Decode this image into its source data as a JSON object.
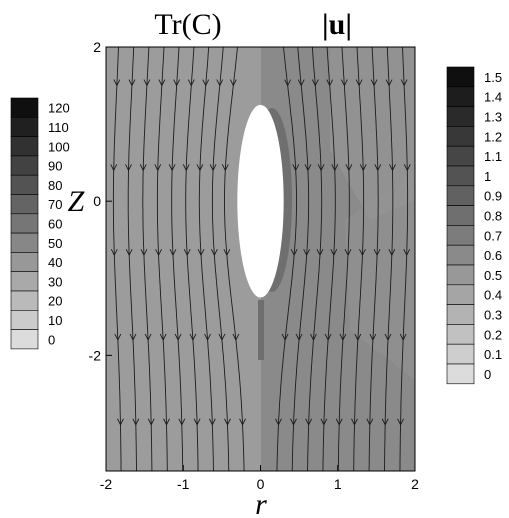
{
  "title_left": "Tr(C)",
  "title_right": "|u|",
  "axes": {
    "xlabel": "r",
    "ylabel": "Z",
    "xlim": [
      -2,
      2
    ],
    "ylim": [
      -3.5,
      2
    ],
    "x_ticks": [
      "-2",
      "-1",
      "0",
      "1",
      "2"
    ],
    "y_ticks": [
      "2",
      "0",
      "-2"
    ]
  },
  "colorbar_left": {
    "levels": [
      "120",
      "110",
      "100",
      "90",
      "80",
      "70",
      "60",
      "50",
      "40",
      "30",
      "20",
      "10",
      "0"
    ]
  },
  "colorbar_right": {
    "levels": [
      "1.5",
      "1.4",
      "1.3",
      "1.2",
      "1.1",
      "1",
      "0.9",
      "0.8",
      "0.7",
      "0.6",
      "0.5",
      "0.4",
      "0.3",
      "0.2",
      "0.1",
      "0"
    ]
  },
  "bubble": {
    "r_semi_axis": 0.3,
    "z_semi_axis": 1.25,
    "center_z": 0.0
  },
  "streamline_r_positions": [
    -1.8,
    -1.6,
    -1.4,
    -1.2,
    -1.0,
    -0.8,
    -0.6,
    -0.4,
    -0.2,
    0.2,
    0.4,
    0.6,
    0.8,
    1.0,
    1.2,
    1.4,
    1.6,
    1.8
  ],
  "colors": {
    "background_left": "#9c9c9c",
    "background_right": "#8a8a8a",
    "streamline": "#1c1c1c"
  }
}
